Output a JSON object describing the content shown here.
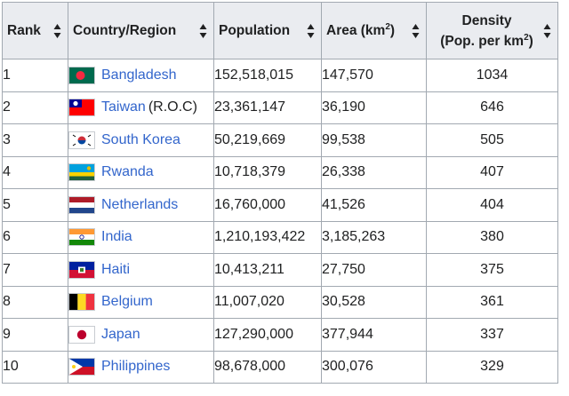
{
  "headers": {
    "rank": "Rank",
    "country": "Country/Region",
    "population": "Population",
    "area": "Area (km",
    "area_sup": "2",
    "area_close": ")",
    "density_line1": "Density",
    "density_line2": "(Pop. per km",
    "density_sup": "2",
    "density_close": ")"
  },
  "rows": [
    {
      "rank": "1",
      "country": "Bangladesh",
      "note": "",
      "population": "152,518,015",
      "area": "147,570",
      "density": "1034",
      "flag_icon": "bangladesh-flag-icon"
    },
    {
      "rank": "2",
      "country": "Taiwan",
      "note": "(R.O.C)",
      "population": "23,361,147",
      "area": "36,190",
      "density": "646",
      "flag_icon": "taiwan-flag-icon"
    },
    {
      "rank": "3",
      "country": "South Korea",
      "note": "",
      "population": "50,219,669",
      "area": "99,538",
      "density": "505",
      "flag_icon": "south-korea-flag-icon"
    },
    {
      "rank": "4",
      "country": "Rwanda",
      "note": "",
      "population": "10,718,379",
      "area": "26,338",
      "density": "407",
      "flag_icon": "rwanda-flag-icon"
    },
    {
      "rank": "5",
      "country": "Netherlands",
      "note": "",
      "population": "16,760,000",
      "area": "41,526",
      "density": "404",
      "flag_icon": "netherlands-flag-icon"
    },
    {
      "rank": "6",
      "country": "India",
      "note": "",
      "population": "1,210,193,422",
      "area": "3,185,263",
      "density": "380",
      "flag_icon": "india-flag-icon"
    },
    {
      "rank": "7",
      "country": "Haiti",
      "note": "",
      "population": "10,413,211",
      "area": "27,750",
      "density": "375",
      "flag_icon": "haiti-flag-icon"
    },
    {
      "rank": "8",
      "country": "Belgium",
      "note": "",
      "population": "11,007,020",
      "area": "30,528",
      "density": "361",
      "flag_icon": "belgium-flag-icon"
    },
    {
      "rank": "9",
      "country": "Japan",
      "note": "",
      "population": "127,290,000",
      "area": "377,944",
      "density": "337",
      "flag_icon": "japan-flag-icon"
    },
    {
      "rank": "10",
      "country": "Philippines",
      "note": "",
      "population": "98,678,000",
      "area": "300,076",
      "density": "329",
      "flag_icon": "philippines-flag-icon"
    }
  ],
  "colors": {
    "link": "#3366cc",
    "header_bg": "#eaecf0",
    "border": "#a2a9b1",
    "text": "#202122"
  }
}
